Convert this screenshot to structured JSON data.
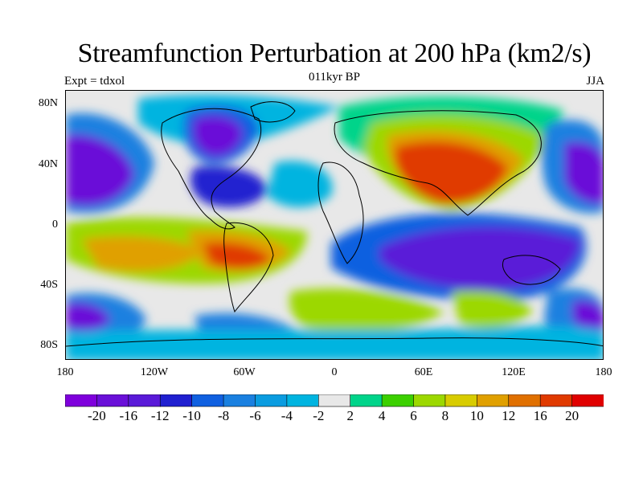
{
  "title": "Streamfunction Perturbation at 200 hPa (km2/s)",
  "subtitle": "011kyr BP",
  "left_label": "Expt = tdxol",
  "right_label": "JJA",
  "y_ticks": [
    "80N",
    "40N",
    "0",
    "40S",
    "80S"
  ],
  "x_ticks": [
    "180",
    "120W",
    "60W",
    "0",
    "60E",
    "120E",
    "180"
  ],
  "colorbar": {
    "colors": [
      "#7f00dc",
      "#6a10d8",
      "#5a1ad8",
      "#2020d0",
      "#1060e0",
      "#1a80e0",
      "#0a9ce0",
      "#00b4e0",
      "#e8e8e8",
      "#00d48a",
      "#3cd000",
      "#9cd800",
      "#d8cc00",
      "#e0a000",
      "#e07000",
      "#e03a00",
      "#e00000"
    ],
    "labels": [
      "-20",
      "-16",
      "-12",
      "-10",
      "-8",
      "-6",
      "-4",
      "-2",
      "2",
      "4",
      "6",
      "8",
      "10",
      "12",
      "16",
      "20"
    ]
  },
  "colors": {
    "neutral": "#e8e8e8",
    "coast": "#000000"
  }
}
